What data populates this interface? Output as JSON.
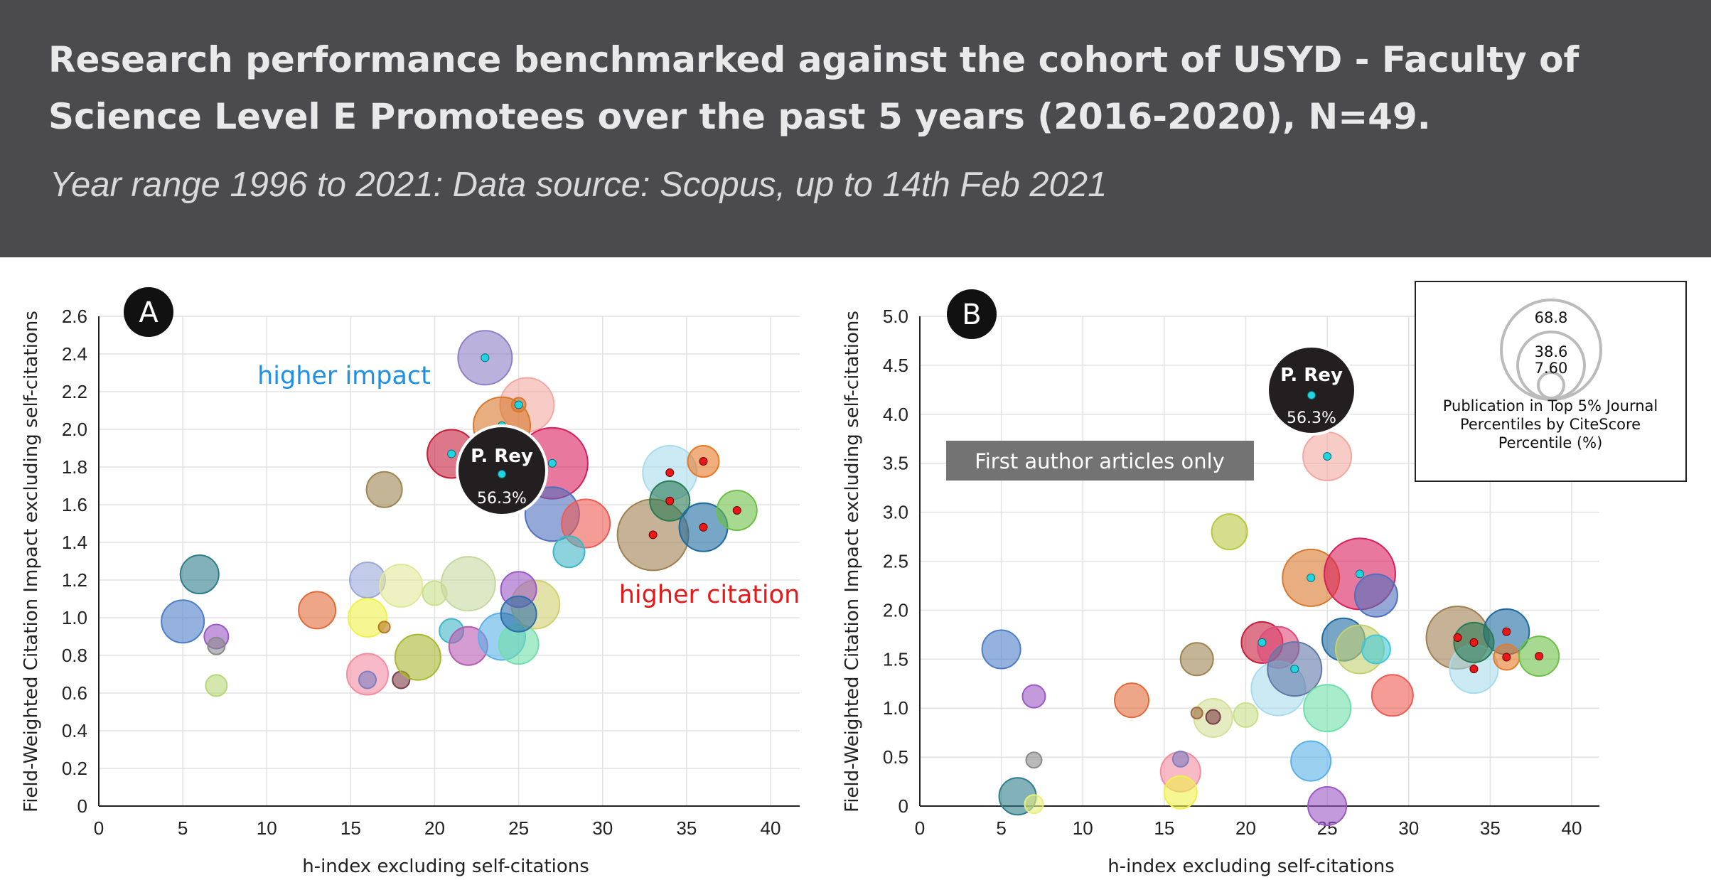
{
  "header": {
    "title": "Research performance benchmarked against the cohort of USYD - Faculty of Science Level  E Promotees over the past 5 years (2016-2020),  N=49.",
    "subtitle": "Year range 1996 to 2021: Data source: Scopus, up to 14th Feb 2021"
  },
  "colors": {
    "header_bg": "#4b4b4d",
    "impact_marker": "#22d3e0",
    "citation_marker": "#e81818",
    "highlight": "#222222"
  },
  "chart_data": [
    {
      "panel": "A",
      "type": "scatter",
      "xlabel": "h-index excluding self-citations",
      "ylabel": "Field-Weighted Citation Impact excluding self-citations",
      "xlim": [
        0,
        42
      ],
      "ylim": [
        0,
        2.6
      ],
      "xticks": [
        "0",
        "5",
        "10",
        "15",
        "20",
        "25",
        "30",
        "35",
        "40"
      ],
      "yticks": [
        "0",
        "0.2",
        "0.4",
        "0.6",
        "0.8",
        "1.0",
        "1.2",
        "1.4",
        "1.6",
        "1.8",
        "2.0",
        "2.2",
        "2.4",
        "2.6"
      ],
      "annotations": {
        "higher_impact": "higher impact",
        "higher_citation": "higher citation"
      },
      "highlight": {
        "name": "P. Rey",
        "value": "56.3%",
        "x": 24,
        "y": 1.77
      },
      "points": [
        {
          "x": 23,
          "y": 2.38,
          "s": 38,
          "c": "#8c7fc4",
          "m": "impact"
        },
        {
          "x": 25.5,
          "y": 2.13,
          "s": 38,
          "c": "#f1a8a0",
          "m": ""
        },
        {
          "x": 24,
          "y": 2.02,
          "s": 40,
          "c": "#d8782c",
          "m": "impact"
        },
        {
          "x": 25,
          "y": 2.13,
          "s": 10,
          "c": "#d8782c",
          "m": "impact"
        },
        {
          "x": 21,
          "y": 1.87,
          "s": 34,
          "c": "#c41e3a",
          "m": "impact"
        },
        {
          "x": 27,
          "y": 1.82,
          "s": 50,
          "c": "#d81e5b",
          "m": "impact"
        },
        {
          "x": 27,
          "y": 1.55,
          "s": 38,
          "c": "#4e6fc0",
          "m": ""
        },
        {
          "x": 29,
          "y": 1.5,
          "s": 34,
          "c": "#f05a52",
          "m": ""
        },
        {
          "x": 28,
          "y": 1.35,
          "s": 22,
          "c": "#3fb6c6",
          "m": ""
        },
        {
          "x": 17,
          "y": 1.68,
          "s": 25,
          "c": "#9e8452",
          "m": ""
        },
        {
          "x": 6,
          "y": 1.23,
          "s": 27,
          "c": "#2e7d8c",
          "m": ""
        },
        {
          "x": 5,
          "y": 0.98,
          "s": 30,
          "c": "#4e7ec8",
          "m": ""
        },
        {
          "x": 7,
          "y": 0.9,
          "s": 17,
          "c": "#9b59c7",
          "m": ""
        },
        {
          "x": 7,
          "y": 0.85,
          "s": 12,
          "c": "#8a8a8a",
          "m": ""
        },
        {
          "x": 7,
          "y": 0.64,
          "s": 15,
          "c": "#b8d878",
          "m": ""
        },
        {
          "x": 13,
          "y": 1.04,
          "s": 26,
          "c": "#e26a3a",
          "m": ""
        },
        {
          "x": 16,
          "y": 1.2,
          "s": 25,
          "c": "#9aa8d8",
          "m": ""
        },
        {
          "x": 18,
          "y": 1.17,
          "s": 30,
          "c": "#e2e89a",
          "m": ""
        },
        {
          "x": 16,
          "y": 1.0,
          "s": 27,
          "c": "#eef24a",
          "m": ""
        },
        {
          "x": 17,
          "y": 0.95,
          "s": 8,
          "c": "#b87820",
          "m": ""
        },
        {
          "x": 16,
          "y": 0.7,
          "s": 29,
          "c": "#f58ca2",
          "m": ""
        },
        {
          "x": 16,
          "y": 0.67,
          "s": 12,
          "c": "#7e7ebe",
          "m": ""
        },
        {
          "x": 18,
          "y": 0.67,
          "s": 12,
          "c": "#7b3c46",
          "m": ""
        },
        {
          "x": 19,
          "y": 0.79,
          "s": 32,
          "c": "#a8b830",
          "m": ""
        },
        {
          "x": 20,
          "y": 1.13,
          "s": 17,
          "c": "#c8e088",
          "m": ""
        },
        {
          "x": 22,
          "y": 1.18,
          "s": 38,
          "c": "#c4d8a0",
          "m": ""
        },
        {
          "x": 21,
          "y": 0.93,
          "s": 17,
          "c": "#3fb6c6",
          "m": ""
        },
        {
          "x": 22,
          "y": 0.85,
          "s": 27,
          "c": "#b85ab0",
          "m": ""
        },
        {
          "x": 24,
          "y": 0.9,
          "s": 33,
          "c": "#5ab0e8",
          "m": ""
        },
        {
          "x": 25,
          "y": 0.86,
          "s": 28,
          "c": "#6ee0a8",
          "m": ""
        },
        {
          "x": 26,
          "y": 1.07,
          "s": 34,
          "c": "#d0d070",
          "m": ""
        },
        {
          "x": 25,
          "y": 1.15,
          "s": 25,
          "c": "#9b59c7",
          "m": ""
        },
        {
          "x": 25,
          "y": 1.02,
          "s": 25,
          "c": "#2e6fa8",
          "m": ""
        },
        {
          "x": 33,
          "y": 1.44,
          "s": 50,
          "c": "#a07e50",
          "m": "citation"
        },
        {
          "x": 34,
          "y": 1.77,
          "s": 38,
          "c": "#a8dcec",
          "m": "citation"
        },
        {
          "x": 36,
          "y": 1.83,
          "s": 22,
          "c": "#e77a28",
          "m": "citation"
        },
        {
          "x": 34,
          "y": 1.62,
          "s": 28,
          "c": "#2a7a54",
          "m": "citation"
        },
        {
          "x": 36,
          "y": 1.48,
          "s": 34,
          "c": "#1d6aa0",
          "m": "citation"
        },
        {
          "x": 38,
          "y": 1.57,
          "s": 28,
          "c": "#6cc048",
          "m": "citation"
        }
      ]
    },
    {
      "panel": "B",
      "type": "scatter",
      "xlabel": "h-index excluding self-citations",
      "ylabel": "Field-Weighted Citation Impact excluding self-citations",
      "xlim": [
        0,
        42
      ],
      "ylim": [
        0,
        5.0
      ],
      "xticks": [
        "0",
        "5",
        "10",
        "15",
        "20",
        "25",
        "30",
        "35",
        "40"
      ],
      "yticks": [
        "0",
        "0.5",
        "1.0",
        "1.5",
        "2.0",
        "2.5",
        "3.0",
        "3.5",
        "4.0",
        "4.5",
        "5.0"
      ],
      "annotation_box": "First author articles only",
      "highlight": {
        "name": "P. Rey",
        "value": "56.3%",
        "x": 24,
        "y": 4.17
      },
      "legend": {
        "values": [
          "68.8",
          "38.6",
          "7.60"
        ],
        "title": "Publication in Top 5% Journal Percentiles by CiteScore Percentile (%)"
      },
      "points": [
        {
          "x": 25,
          "y": 3.57,
          "s": 34,
          "c": "#f1a8a0",
          "m": "impact"
        },
        {
          "x": 19,
          "y": 2.8,
          "s": 25,
          "c": "#b8c840",
          "m": ""
        },
        {
          "x": 24,
          "y": 2.33,
          "s": 40,
          "c": "#d8782c",
          "m": "impact"
        },
        {
          "x": 27,
          "y": 2.37,
          "s": 50,
          "c": "#d81e5b",
          "m": "impact"
        },
        {
          "x": 28,
          "y": 2.15,
          "s": 30,
          "c": "#4e6fc0",
          "m": ""
        },
        {
          "x": 21,
          "y": 1.67,
          "s": 29,
          "c": "#c41e3a",
          "m": "impact"
        },
        {
          "x": 22,
          "y": 1.62,
          "s": 29,
          "c": "#e04a7a",
          "m": ""
        },
        {
          "x": 22,
          "y": 1.2,
          "s": 38,
          "c": "#a8dcec",
          "m": ""
        },
        {
          "x": 23,
          "y": 1.4,
          "s": 38,
          "c": "#6078a8",
          "m": "impact"
        },
        {
          "x": 25,
          "y": 1.0,
          "s": 33,
          "c": "#6ee0a8",
          "m": ""
        },
        {
          "x": 24,
          "y": 0.46,
          "s": 28,
          "c": "#5ab0e8",
          "m": ""
        },
        {
          "x": 25,
          "y": 0.0,
          "s": 27,
          "c": "#9b59c7",
          "m": ""
        },
        {
          "x": 26,
          "y": 1.7,
          "s": 30,
          "c": "#1d6aa0",
          "m": ""
        },
        {
          "x": 27,
          "y": 1.6,
          "s": 34,
          "c": "#c4d070",
          "m": ""
        },
        {
          "x": 28,
          "y": 1.6,
          "s": 20,
          "c": "#3fc8d8",
          "m": ""
        },
        {
          "x": 29,
          "y": 1.13,
          "s": 29,
          "c": "#f05a52",
          "m": ""
        },
        {
          "x": 5,
          "y": 1.6,
          "s": 27,
          "c": "#4e7ec8",
          "m": ""
        },
        {
          "x": 7,
          "y": 1.12,
          "s": 16,
          "c": "#9b59c7",
          "m": ""
        },
        {
          "x": 7,
          "y": 0.47,
          "s": 11,
          "c": "#8a8a8a",
          "m": ""
        },
        {
          "x": 6,
          "y": 0.1,
          "s": 26,
          "c": "#2e7d8c",
          "m": ""
        },
        {
          "x": 7,
          "y": 0.02,
          "s": 13,
          "c": "#e8f07a",
          "m": ""
        },
        {
          "x": 13,
          "y": 1.08,
          "s": 24,
          "c": "#e26a3a",
          "m": ""
        },
        {
          "x": 17,
          "y": 1.5,
          "s": 23,
          "c": "#9e8452",
          "m": ""
        },
        {
          "x": 18,
          "y": 0.9,
          "s": 27,
          "c": "#d4e098",
          "m": ""
        },
        {
          "x": 17,
          "y": 0.95,
          "s": 8,
          "c": "#9e6a40",
          "m": ""
        },
        {
          "x": 18,
          "y": 0.91,
          "s": 10,
          "c": "#7b3c46",
          "m": ""
        },
        {
          "x": 20,
          "y": 0.93,
          "s": 17,
          "c": "#c8e088",
          "m": ""
        },
        {
          "x": 16,
          "y": 0.35,
          "s": 28,
          "c": "#f58ca2",
          "m": ""
        },
        {
          "x": 16,
          "y": 0.48,
          "s": 11,
          "c": "#7e7ebe",
          "m": ""
        },
        {
          "x": 16,
          "y": 0.14,
          "s": 23,
          "c": "#eef24a",
          "m": ""
        },
        {
          "x": 33,
          "y": 1.72,
          "s": 44,
          "c": "#a07e50",
          "m": "citation"
        },
        {
          "x": 34,
          "y": 1.4,
          "s": 34,
          "c": "#a8dcec",
          "m": "citation"
        },
        {
          "x": 36,
          "y": 1.78,
          "s": 32,
          "c": "#1d6aa0",
          "m": "citation"
        },
        {
          "x": 36,
          "y": 1.52,
          "s": 18,
          "c": "#e77a28",
          "m": "citation"
        },
        {
          "x": 34,
          "y": 1.67,
          "s": 28,
          "c": "#2a7a54",
          "m": "citation"
        },
        {
          "x": 38,
          "y": 1.53,
          "s": 28,
          "c": "#6cc048",
          "m": "citation"
        }
      ]
    }
  ],
  "panels": {
    "a": {
      "letter": "A",
      "xlabel": "h-index excluding self-citations",
      "ylabel": "Field-Weighted Citation Impact excluding self-citations",
      "higher_impact": "higher impact",
      "higher_citation": "higher citation",
      "highlight_name": "P. Rey",
      "highlight_value": "56.3%"
    },
    "b": {
      "letter": "B",
      "xlabel": "h-index excluding self-citations",
      "ylabel": "Field-Weighted Citation Impact excluding self-citations",
      "first_author": "First author articles only",
      "highlight_name": "P. Rey",
      "highlight_value": "56.3%",
      "legend_v1": "68.8",
      "legend_v2": "38.6",
      "legend_v3": "7.60",
      "legend_line1": "Publication in Top 5% Journal",
      "legend_line2": "Percentiles by CiteScore",
      "legend_line3": "Percentile (%)"
    }
  }
}
